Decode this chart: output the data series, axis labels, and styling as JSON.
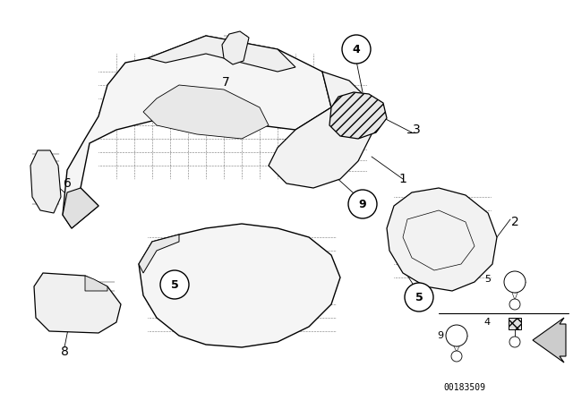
{
  "background_color": "#ffffff",
  "figure_width": 6.4,
  "figure_height": 4.48,
  "dpi": 100,
  "image_id": "00183509",
  "line_color": "#000000",
  "circle_fill": "#ffffff",
  "circle_edge": "#000000",
  "lw": 0.8,
  "footer_text": "00183509"
}
